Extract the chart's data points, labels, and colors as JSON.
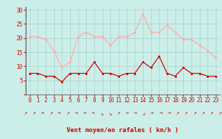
{
  "hours": [
    0,
    1,
    2,
    3,
    4,
    5,
    6,
    7,
    8,
    9,
    10,
    11,
    12,
    13,
    14,
    15,
    16,
    17,
    18,
    19,
    20,
    21,
    22,
    23
  ],
  "wind_avg": [
    7.5,
    7.5,
    6.5,
    6.5,
    4.5,
    7.5,
    7.5,
    7.5,
    11.5,
    7.5,
    7.5,
    6.5,
    7.5,
    7.5,
    11.5,
    9.5,
    13.5,
    7.5,
    6.5,
    9.5,
    7.5,
    7.5,
    6.5,
    6.5
  ],
  "wind_gust": [
    20.5,
    20.5,
    19.5,
    15.5,
    9.5,
    11.5,
    20.5,
    22.0,
    20.5,
    20.5,
    17.5,
    20.5,
    20.5,
    22.0,
    28.5,
    22.0,
    22.0,
    24.5,
    22.0,
    19.5,
    19.5,
    17.5,
    15.5,
    13.0
  ],
  "avg_color": "#cc0000",
  "gust_color": "#ffaaaa",
  "bg_color": "#cceee8",
  "grid_color": "#aacccc",
  "axis_color": "#cc0000",
  "xlabel": "Vent moyen/en rafales ( km/h )",
  "ylim": [
    0,
    31
  ],
  "yticks": [
    0,
    5,
    10,
    15,
    20,
    25,
    30
  ],
  "tick_fontsize": 5.5,
  "label_fontsize": 6.5,
  "arrow_chars": [
    "↗",
    "↗",
    "→",
    "↗",
    "→",
    "↗",
    "→",
    "→",
    "→",
    "↘",
    "↘",
    "↗",
    "→",
    "→",
    "↙",
    "→",
    "→",
    "→",
    "↗",
    "↗",
    "↗",
    "↗",
    "↗",
    "↗"
  ]
}
